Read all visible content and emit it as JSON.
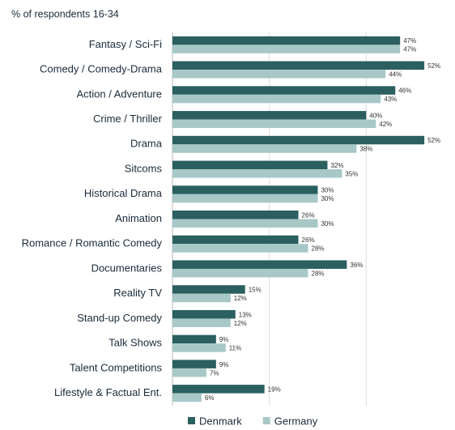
{
  "chart_data": {
    "type": "hbar",
    "title": "% of respondents 16-34",
    "categories": [
      "Fantasy / Sci-Fi",
      "Comedy / Comedy-Drama",
      "Action / Adventure",
      "Crime / Thriller",
      "Drama",
      "Sitcoms",
      "Historical Drama",
      "Animation",
      "Romance / Romantic Comedy",
      "Documentaries",
      "Reality TV",
      "Stand-up Comedy",
      "Talk Shows",
      "Talent Competitions",
      "Lifestyle & Factual Ent."
    ],
    "series": [
      {
        "name": "Denmark",
        "color": "#2b5f60",
        "values": [
          47,
          52,
          46,
          40,
          52,
          32,
          30,
          26,
          26,
          36,
          15,
          13,
          9,
          9,
          19
        ],
        "value_labels": [
          "47%",
          "52%",
          "46%",
          "40%",
          "52%",
          "32%",
          "30%",
          "26%",
          "26%",
          "36%",
          "15%",
          "13%",
          "9%",
          "9%",
          "19%"
        ]
      },
      {
        "name": "Germany",
        "color": "#a8c8c8",
        "values": [
          47,
          44,
          43,
          42,
          38,
          35,
          30,
          30,
          28,
          28,
          12,
          12,
          11,
          7,
          6
        ],
        "value_labels": [
          "47%",
          "44%",
          "43%",
          "42%",
          "38%",
          "35%",
          "30%",
          "30%",
          "28%",
          "28%",
          "12%",
          "12%",
          "11%",
          "7%",
          "6%"
        ]
      }
    ],
    "xlim": [
      0,
      58
    ],
    "gridlines": [
      0,
      20,
      40
    ]
  }
}
